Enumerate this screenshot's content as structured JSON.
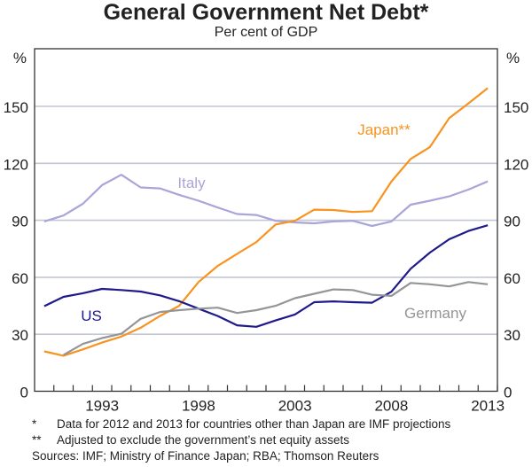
{
  "chart_data": {
    "type": "line",
    "title": "General Government Net Debt*",
    "subtitle": "Per cent of GDP",
    "ylabel_left": "%",
    "ylabel_right": "%",
    "ylim": [
      0,
      165
    ],
    "yticks": [
      0,
      30,
      60,
      90,
      120,
      150
    ],
    "xlim": [
      1989.5,
      2013.5
    ],
    "xtick_labels": [
      "1993",
      "1998",
      "2003",
      "2008",
      "2013"
    ],
    "grid": true,
    "x": [
      1990,
      1991,
      1992,
      1993,
      1994,
      1995,
      1996,
      1997,
      1998,
      1999,
      2000,
      2001,
      2002,
      2003,
      2004,
      2005,
      2006,
      2007,
      2008,
      2009,
      2010,
      2011,
      2012,
      2013
    ],
    "series": [
      {
        "name": "Italy",
        "color": "#a9a5d8",
        "values": [
          89.4,
          92.5,
          98.7,
          108.5,
          114,
          107.3,
          106.8,
          103.4,
          100.3,
          96.7,
          93.3,
          92.8,
          89.7,
          88.9,
          88.4,
          89.4,
          89.7,
          87,
          89.4,
          98.2,
          100.3,
          102.6,
          106.2,
          110.5
        ]
      },
      {
        "name": "Japan**",
        "color": "#f7931e",
        "values": [
          21,
          18.7,
          22,
          25.6,
          28.8,
          33.4,
          39.6,
          45,
          57.5,
          66,
          72.3,
          78.5,
          87.8,
          89.7,
          95.6,
          95.4,
          94.4,
          94.8,
          110.4,
          122.3,
          128.6,
          143.8,
          151.6,
          159.6
        ]
      },
      {
        "name": "US",
        "color": "#1f1a8a",
        "values": [
          44.8,
          49.7,
          51.6,
          53.9,
          53.3,
          52.5,
          50.5,
          47.4,
          43.5,
          39.6,
          34.7,
          33.9,
          37.3,
          40.4,
          46.9,
          47.3,
          46.9,
          46.6,
          52.4,
          64.5,
          73,
          80,
          84.4,
          87.4
        ]
      },
      {
        "name": "Germany",
        "color": "#939598",
        "values": [
          null,
          19.1,
          24.9,
          28,
          30.3,
          38.1,
          41.7,
          42.7,
          43.5,
          44,
          41.2,
          42.7,
          45,
          49,
          51.3,
          53.6,
          53.3,
          50.8,
          50.2,
          57,
          56.3,
          55.2,
          57.5,
          56.3
        ]
      }
    ]
  },
  "footnotes": [
    {
      "marker": "*",
      "text": "Data for 2012 and 2013 for countries other than Japan are IMF projections"
    },
    {
      "marker": "**",
      "text": "Adjusted to exclude the government’s net equity assets"
    }
  ],
  "sources": "Sources: IMF; Ministry of Finance Japan; RBA; Thomson Reuters"
}
